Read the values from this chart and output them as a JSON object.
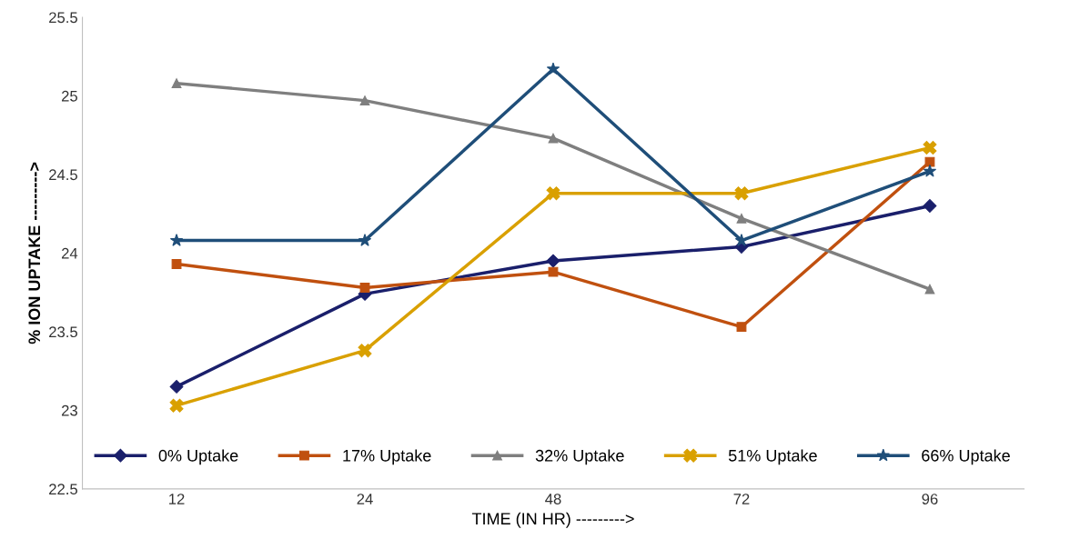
{
  "chart_data": {
    "type": "line",
    "xlabel": "TIME (IN HR) --------->",
    "ylabel": "% ION UPTAKE --------->",
    "categories": [
      "12",
      "24",
      "48",
      "72",
      "96"
    ],
    "series": [
      {
        "name": "0% Uptake",
        "color": "#1a1f6b",
        "marker": "diamond",
        "values": [
          23.15,
          23.74,
          23.95,
          24.04,
          24.3
        ]
      },
      {
        "name": "17% Uptake",
        "color": "#c0500f",
        "marker": "square",
        "values": [
          23.93,
          23.78,
          23.88,
          23.53,
          24.58
        ]
      },
      {
        "name": "32% Uptake",
        "color": "#7f7f7f",
        "marker": "triangle",
        "values": [
          25.08,
          24.97,
          24.73,
          24.22,
          23.77
        ]
      },
      {
        "name": "51% Uptake",
        "color": "#d9a000",
        "marker": "cross",
        "values": [
          23.03,
          23.38,
          24.38,
          24.38,
          24.67
        ]
      },
      {
        "name": "66% Uptake",
        "color": "#1f4e79",
        "marker": "star",
        "values": [
          24.08,
          24.08,
          25.17,
          24.08,
          24.52
        ]
      }
    ],
    "ylim": [
      22.5,
      25.5
    ],
    "yticks": [
      22.5,
      23,
      23.5,
      24,
      24.5,
      25,
      25.5
    ],
    "grid": false,
    "legend": "bottom",
    "line_style": "solid"
  }
}
